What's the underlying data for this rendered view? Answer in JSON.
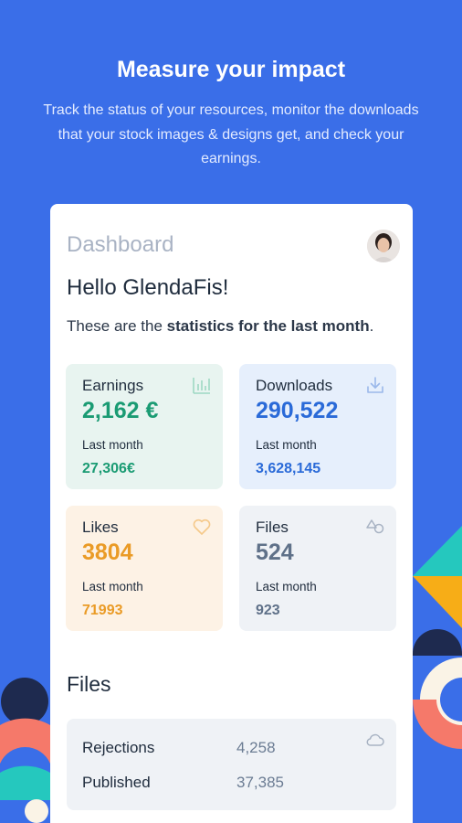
{
  "hero": {
    "title": "Measure your impact",
    "subtitle": "Track the status of your resources, monitor the downloads that your stock images & designs get, and check your earnings."
  },
  "dashboard": {
    "title": "Dashboard",
    "greeting": "Hello GlendaFis!",
    "intro_prefix": "These are the ",
    "intro_bold": "statistics for the last month",
    "intro_suffix": "."
  },
  "stats": [
    {
      "label": "Earnings",
      "value": "2,162 €",
      "period": "Last month",
      "prev": "27,306€",
      "icon": "bar-chart-icon",
      "color": "#1a9b73",
      "bg": "#e8f4f0"
    },
    {
      "label": "Downloads",
      "value": "290,522",
      "period": "Last month",
      "prev": "3,628,145",
      "icon": "download-icon",
      "color": "#2a6ad8",
      "bg": "#e6effc"
    },
    {
      "label": "Likes",
      "value": "3804",
      "period": "Last month",
      "prev": "71993",
      "icon": "heart-icon",
      "color": "#ea9b26",
      "bg": "#fdf2e5"
    },
    {
      "label": "Files",
      "value": "524",
      "period": "Last month",
      "prev": "923",
      "icon": "shapes-icon",
      "color": "#5f7189",
      "bg": "#eff2f6"
    }
  ],
  "files": {
    "title": "Files",
    "rows": [
      {
        "label": "Rejections",
        "value": "4,258"
      },
      {
        "label": "Published",
        "value": "37,385"
      }
    ],
    "icon": "cloud-icon"
  },
  "colors": {
    "background": "#3a6ee8",
    "teal": "#25c8be",
    "orange": "#f7ad17",
    "coral": "#f5796a",
    "navy": "#1e2a4f",
    "cream": "#faf3e6"
  }
}
